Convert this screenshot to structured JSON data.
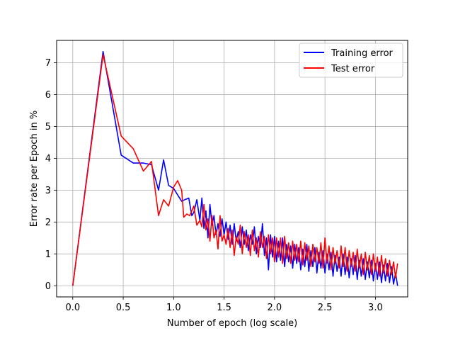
{
  "chart_data": {
    "type": "line",
    "title": "",
    "xlabel": "Number of epoch (log scale)",
    "ylabel": "Error rate per Epoch in %",
    "xlim": [
      -0.16,
      3.32
    ],
    "ylim": [
      -0.35,
      7.7
    ],
    "xticks": [
      0.0,
      0.5,
      1.0,
      1.5,
      2.0,
      2.5,
      3.0
    ],
    "xtick_labels": [
      "0.0",
      "0.5",
      "1.0",
      "1.5",
      "2.0",
      "2.5",
      "3.0"
    ],
    "yticks": [
      0,
      1,
      2,
      3,
      4,
      5,
      6,
      7
    ],
    "ytick_labels": [
      "0",
      "1",
      "2",
      "3",
      "4",
      "5",
      "6",
      "7"
    ],
    "grid": true,
    "legend_position": "top-right",
    "series": [
      {
        "name": "Training error",
        "color": "#0000ff",
        "points": [
          [
            0.0,
            0.0
          ],
          [
            0.3,
            7.35
          ],
          [
            0.48,
            4.1
          ],
          [
            0.6,
            3.85
          ],
          [
            0.7,
            3.85
          ],
          [
            0.78,
            3.8
          ],
          [
            0.85,
            3.0
          ],
          [
            0.9,
            3.95
          ],
          [
            0.95,
            3.15
          ],
          [
            1.0,
            3.05
          ],
          [
            1.04,
            2.85
          ],
          [
            1.08,
            2.65
          ],
          [
            1.11,
            2.7
          ],
          [
            1.15,
            2.75
          ],
          [
            1.18,
            2.2
          ],
          [
            1.2,
            2.3
          ],
          [
            1.23,
            2.7
          ],
          [
            1.26,
            2.05
          ],
          [
            1.28,
            2.75
          ],
          [
            1.3,
            1.8
          ],
          [
            1.32,
            2.35
          ],
          [
            1.34,
            1.5
          ],
          [
            1.36,
            2.55
          ],
          [
            1.38,
            1.9
          ],
          [
            1.4,
            2.2
          ],
          [
            1.42,
            1.6
          ],
          [
            1.44,
            1.95
          ],
          [
            1.46,
            1.55
          ],
          [
            1.48,
            2.1
          ],
          [
            1.5,
            1.6
          ],
          [
            1.52,
            2.0
          ],
          [
            1.54,
            1.45
          ],
          [
            1.56,
            1.9
          ],
          [
            1.58,
            1.3
          ],
          [
            1.6,
            1.95
          ],
          [
            1.62,
            1.4
          ],
          [
            1.64,
            1.7
          ],
          [
            1.66,
            1.2
          ],
          [
            1.68,
            1.85
          ],
          [
            1.7,
            1.3
          ],
          [
            1.72,
            1.75
          ],
          [
            1.74,
            1.1
          ],
          [
            1.76,
            1.6
          ],
          [
            1.78,
            1.3
          ],
          [
            1.8,
            1.85
          ],
          [
            1.82,
            1.0
          ],
          [
            1.84,
            1.55
          ],
          [
            1.86,
            1.2
          ],
          [
            1.88,
            1.95
          ],
          [
            1.9,
            0.95
          ],
          [
            1.92,
            1.5
          ],
          [
            1.94,
            0.5
          ],
          [
            1.96,
            1.6
          ],
          [
            1.98,
            0.9
          ],
          [
            2.0,
            1.55
          ],
          [
            2.02,
            0.75
          ],
          [
            2.04,
            1.4
          ],
          [
            2.06,
            0.8
          ],
          [
            2.08,
            1.5
          ],
          [
            2.1,
            0.6
          ],
          [
            2.12,
            1.3
          ],
          [
            2.14,
            0.75
          ],
          [
            2.16,
            1.25
          ],
          [
            2.18,
            0.55
          ],
          [
            2.2,
            1.3
          ],
          [
            2.22,
            0.7
          ],
          [
            2.24,
            1.2
          ],
          [
            2.26,
            0.5
          ],
          [
            2.28,
            1.15
          ],
          [
            2.3,
            0.6
          ],
          [
            2.32,
            1.3
          ],
          [
            2.34,
            0.45
          ],
          [
            2.36,
            1.1
          ],
          [
            2.38,
            0.6
          ],
          [
            2.4,
            1.2
          ],
          [
            2.42,
            0.4
          ],
          [
            2.44,
            1.05
          ],
          [
            2.46,
            0.55
          ],
          [
            2.48,
            1.1
          ],
          [
            2.5,
            0.4
          ],
          [
            2.52,
            1.0
          ],
          [
            2.54,
            0.5
          ],
          [
            2.56,
            1.05
          ],
          [
            2.58,
            0.3
          ],
          [
            2.6,
            0.95
          ],
          [
            2.62,
            0.45
          ],
          [
            2.64,
            0.9
          ],
          [
            2.66,
            0.3
          ],
          [
            2.68,
            1.0
          ],
          [
            2.7,
            0.35
          ],
          [
            2.72,
            0.9
          ],
          [
            2.74,
            0.25
          ],
          [
            2.76,
            0.85
          ],
          [
            2.78,
            0.35
          ],
          [
            2.8,
            0.95
          ],
          [
            2.82,
            0.2
          ],
          [
            2.84,
            0.8
          ],
          [
            2.86,
            0.3
          ],
          [
            2.88,
            0.85
          ],
          [
            2.9,
            0.2
          ],
          [
            2.92,
            0.75
          ],
          [
            2.94,
            0.25
          ],
          [
            2.96,
            0.8
          ],
          [
            2.98,
            0.15
          ],
          [
            3.0,
            0.7
          ],
          [
            3.02,
            0.2
          ],
          [
            3.04,
            0.75
          ],
          [
            3.06,
            0.1
          ],
          [
            3.08,
            0.65
          ],
          [
            3.1,
            0.15
          ],
          [
            3.12,
            0.7
          ],
          [
            3.14,
            0.1
          ],
          [
            3.16,
            0.6
          ],
          [
            3.18,
            0.05
          ],
          [
            3.2,
            0.4
          ],
          [
            3.22,
            0.0
          ]
        ]
      },
      {
        "name": "Test error",
        "color": "#ff0000",
        "points": [
          [
            0.0,
            0.0
          ],
          [
            0.3,
            7.25
          ],
          [
            0.48,
            4.7
          ],
          [
            0.6,
            4.3
          ],
          [
            0.7,
            3.6
          ],
          [
            0.78,
            3.9
          ],
          [
            0.85,
            2.2
          ],
          [
            0.9,
            2.7
          ],
          [
            0.95,
            2.5
          ],
          [
            1.0,
            3.1
          ],
          [
            1.04,
            3.3
          ],
          [
            1.08,
            3.0
          ],
          [
            1.1,
            2.15
          ],
          [
            1.13,
            2.25
          ],
          [
            1.16,
            2.2
          ],
          [
            1.2,
            2.5
          ],
          [
            1.23,
            1.9
          ],
          [
            1.26,
            2.05
          ],
          [
            1.28,
            1.85
          ],
          [
            1.3,
            2.55
          ],
          [
            1.32,
            1.75
          ],
          [
            1.34,
            2.1
          ],
          [
            1.36,
            1.4
          ],
          [
            1.38,
            2.2
          ],
          [
            1.4,
            1.5
          ],
          [
            1.42,
            1.75
          ],
          [
            1.44,
            1.15
          ],
          [
            1.46,
            2.2
          ],
          [
            1.48,
            1.4
          ],
          [
            1.5,
            1.6
          ],
          [
            1.52,
            1.3
          ],
          [
            1.54,
            1.8
          ],
          [
            1.56,
            1.2
          ],
          [
            1.58,
            1.75
          ],
          [
            1.6,
            0.95
          ],
          [
            1.62,
            1.55
          ],
          [
            1.64,
            1.3
          ],
          [
            1.66,
            1.9
          ],
          [
            1.68,
            1.0
          ],
          [
            1.7,
            1.7
          ],
          [
            1.72,
            1.2
          ],
          [
            1.74,
            1.6
          ],
          [
            1.76,
            0.95
          ],
          [
            1.78,
            1.75
          ],
          [
            1.8,
            1.1
          ],
          [
            1.82,
            1.5
          ],
          [
            1.84,
            0.9
          ],
          [
            1.86,
            1.7
          ],
          [
            1.88,
            1.2
          ],
          [
            1.9,
            1.55
          ],
          [
            1.92,
            0.85
          ],
          [
            1.94,
            1.6
          ],
          [
            1.96,
            1.0
          ],
          [
            1.98,
            1.5
          ],
          [
            2.0,
            0.75
          ],
          [
            2.02,
            1.5
          ],
          [
            2.04,
            0.9
          ],
          [
            2.06,
            1.5
          ],
          [
            2.08,
            0.7
          ],
          [
            2.1,
            1.55
          ],
          [
            2.12,
            0.85
          ],
          [
            2.14,
            1.35
          ],
          [
            2.16,
            0.7
          ],
          [
            2.18,
            1.4
          ],
          [
            2.2,
            0.8
          ],
          [
            2.22,
            1.3
          ],
          [
            2.24,
            0.75
          ],
          [
            2.26,
            1.4
          ],
          [
            2.28,
            0.65
          ],
          [
            2.3,
            1.35
          ],
          [
            2.32,
            0.8
          ],
          [
            2.34,
            1.25
          ],
          [
            2.36,
            0.6
          ],
          [
            2.38,
            1.3
          ],
          [
            2.4,
            0.75
          ],
          [
            2.42,
            1.2
          ],
          [
            2.44,
            0.7
          ],
          [
            2.46,
            1.35
          ],
          [
            2.48,
            0.55
          ],
          [
            2.5,
            1.5
          ],
          [
            2.52,
            0.7
          ],
          [
            2.54,
            1.25
          ],
          [
            2.56,
            0.5
          ],
          [
            2.58,
            1.2
          ],
          [
            2.6,
            0.7
          ],
          [
            2.62,
            1.1
          ],
          [
            2.64,
            0.55
          ],
          [
            2.66,
            1.25
          ],
          [
            2.68,
            0.6
          ],
          [
            2.7,
            1.2
          ],
          [
            2.72,
            0.45
          ],
          [
            2.74,
            1.1
          ],
          [
            2.76,
            0.6
          ],
          [
            2.78,
            1.05
          ],
          [
            2.8,
            0.45
          ],
          [
            2.82,
            1.15
          ],
          [
            2.84,
            0.55
          ],
          [
            2.86,
            1.0
          ],
          [
            2.88,
            0.35
          ],
          [
            2.9,
            1.05
          ],
          [
            2.92,
            0.5
          ],
          [
            2.94,
            0.95
          ],
          [
            2.96,
            0.35
          ],
          [
            2.98,
            1.0
          ],
          [
            3.0,
            0.45
          ],
          [
            3.02,
            0.9
          ],
          [
            3.04,
            0.3
          ],
          [
            3.06,
            0.95
          ],
          [
            3.08,
            0.4
          ],
          [
            3.1,
            0.85
          ],
          [
            3.12,
            0.3
          ],
          [
            3.14,
            0.8
          ],
          [
            3.16,
            0.35
          ],
          [
            3.18,
            0.75
          ],
          [
            3.2,
            0.25
          ],
          [
            3.22,
            0.7
          ]
        ]
      }
    ]
  }
}
